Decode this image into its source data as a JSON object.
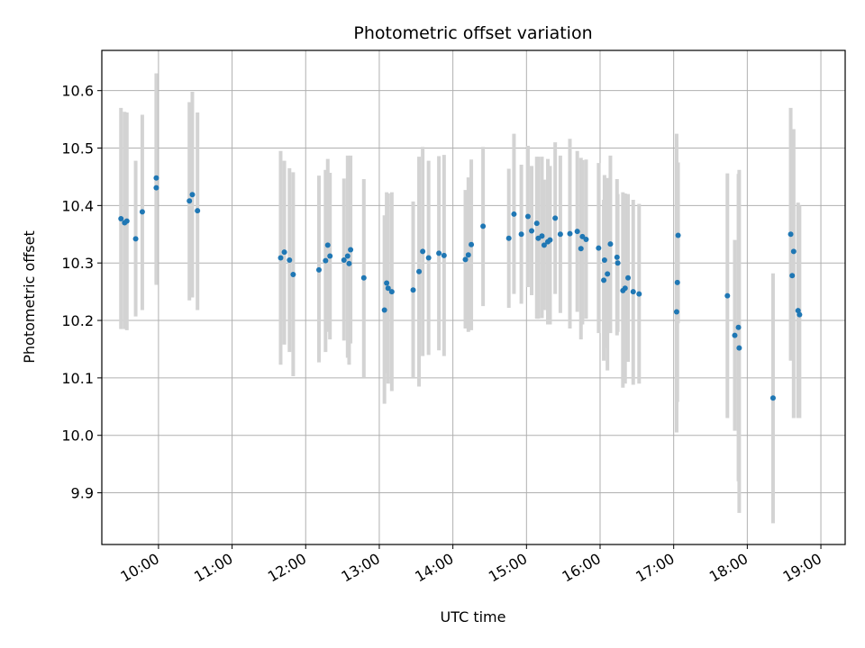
{
  "chart_data": {
    "type": "scatter",
    "title": "Photometric offset variation",
    "xlabel": "UTC time",
    "ylabel": "Photometric offset",
    "x_unit": "hours UTC",
    "xlim": [
      9.23,
      19.33
    ],
    "ylim": [
      9.81,
      10.67
    ],
    "grid": true,
    "point_color": "#1f77b4",
    "errorbar_color": "#d3d3d3",
    "x_ticks": [
      {
        "value": 10,
        "label": "10:00"
      },
      {
        "value": 11,
        "label": "11:00"
      },
      {
        "value": 12,
        "label": "12:00"
      },
      {
        "value": 13,
        "label": "13:00"
      },
      {
        "value": 14,
        "label": "14:00"
      },
      {
        "value": 15,
        "label": "15:00"
      },
      {
        "value": 16,
        "label": "16:00"
      },
      {
        "value": 17,
        "label": "17:00"
      },
      {
        "value": 18,
        "label": "18:00"
      },
      {
        "value": 19,
        "label": "19:00"
      }
    ],
    "y_ticks": [
      {
        "value": 9.9,
        "label": "9.9"
      },
      {
        "value": 10.0,
        "label": "10.0"
      },
      {
        "value": 10.1,
        "label": "10.1"
      },
      {
        "value": 10.2,
        "label": "10.2"
      },
      {
        "value": 10.3,
        "label": "10.3"
      },
      {
        "value": 10.4,
        "label": "10.4"
      },
      {
        "value": 10.5,
        "label": "10.5"
      },
      {
        "value": 10.6,
        "label": "10.6"
      }
    ],
    "points": [
      [
        9.49,
        10.377,
        10.185,
        10.57
      ],
      [
        9.54,
        10.37,
        10.185,
        10.563
      ],
      [
        9.57,
        10.373,
        10.183,
        10.562
      ],
      [
        9.69,
        10.342,
        10.207,
        10.478
      ],
      [
        9.78,
        10.389,
        10.218,
        10.558
      ],
      [
        9.97,
        10.448,
        10.266,
        10.63
      ],
      [
        9.97,
        10.431,
        10.262,
        10.598
      ],
      [
        10.42,
        10.408,
        10.235,
        10.58
      ],
      [
        10.46,
        10.419,
        10.24,
        10.598
      ],
      [
        10.53,
        10.391,
        10.218,
        10.562
      ],
      [
        11.66,
        10.309,
        10.123,
        10.495
      ],
      [
        11.71,
        10.319,
        10.158,
        10.478
      ],
      [
        11.78,
        10.305,
        10.145,
        10.465
      ],
      [
        11.83,
        10.28,
        10.103,
        10.458
      ],
      [
        12.18,
        10.288,
        10.127,
        10.452
      ],
      [
        12.27,
        10.304,
        10.145,
        10.462
      ],
      [
        12.3,
        10.331,
        10.18,
        10.481
      ],
      [
        12.33,
        10.312,
        10.167,
        10.457
      ],
      [
        12.52,
        10.305,
        10.165,
        10.447
      ],
      [
        12.57,
        10.312,
        10.135,
        10.487
      ],
      [
        12.59,
        10.299,
        10.123,
        10.475
      ],
      [
        12.61,
        10.323,
        10.16,
        10.487
      ],
      [
        12.79,
        10.274,
        10.1,
        10.446
      ],
      [
        13.07,
        10.218,
        10.055,
        10.383
      ],
      [
        13.1,
        10.265,
        10.108,
        10.423
      ],
      [
        13.12,
        10.256,
        10.09,
        10.421
      ],
      [
        13.17,
        10.25,
        10.077,
        10.423
      ],
      [
        13.46,
        10.253,
        10.1,
        10.407
      ],
      [
        13.54,
        10.285,
        10.085,
        10.485
      ],
      [
        13.59,
        10.32,
        10.138,
        10.502
      ],
      [
        13.67,
        10.309,
        10.14,
        10.478
      ],
      [
        13.81,
        10.317,
        10.148,
        10.486
      ],
      [
        13.88,
        10.313,
        10.138,
        10.488
      ],
      [
        14.17,
        10.306,
        10.186,
        10.427
      ],
      [
        14.21,
        10.314,
        10.18,
        10.449
      ],
      [
        14.25,
        10.332,
        10.183,
        10.48
      ],
      [
        14.41,
        10.364,
        10.225,
        10.502
      ],
      [
        14.76,
        10.343,
        10.222,
        10.464
      ],
      [
        14.83,
        10.385,
        10.246,
        10.525
      ],
      [
        14.93,
        10.35,
        10.229,
        10.471
      ],
      [
        15.02,
        10.381,
        10.258,
        10.504
      ],
      [
        15.07,
        10.356,
        10.244,
        10.469
      ],
      [
        15.14,
        10.369,
        10.203,
        10.485
      ],
      [
        15.16,
        10.343,
        10.203,
        10.485
      ],
      [
        15.21,
        10.347,
        10.204,
        10.485
      ],
      [
        15.24,
        10.331,
        10.218,
        10.445
      ],
      [
        15.29,
        10.337,
        10.193,
        10.481
      ],
      [
        15.32,
        10.34,
        10.193,
        10.469
      ],
      [
        15.39,
        10.378,
        10.246,
        10.51
      ],
      [
        15.46,
        10.35,
        10.213,
        10.487
      ],
      [
        15.59,
        10.351,
        10.186,
        10.516
      ],
      [
        15.69,
        10.355,
        10.215,
        10.495
      ],
      [
        15.74,
        10.325,
        10.167,
        10.483
      ],
      [
        15.76,
        10.346,
        10.193,
        10.479
      ],
      [
        15.81,
        10.341,
        10.203,
        10.48
      ],
      [
        15.98,
        10.326,
        10.178,
        10.474
      ],
      [
        16.05,
        10.27,
        10.13,
        10.41
      ],
      [
        16.06,
        10.305,
        10.152,
        10.453
      ],
      [
        16.1,
        10.281,
        10.113,
        10.448
      ],
      [
        16.14,
        10.333,
        10.178,
        10.487
      ],
      [
        16.23,
        10.31,
        10.174,
        10.446
      ],
      [
        16.24,
        10.3,
        10.18,
        10.42
      ],
      [
        16.31,
        10.252,
        10.083,
        10.423
      ],
      [
        16.34,
        10.256,
        10.09,
        10.421
      ],
      [
        16.38,
        10.274,
        10.128,
        10.42
      ],
      [
        16.45,
        10.25,
        10.088,
        10.41
      ],
      [
        16.53,
        10.246,
        10.09,
        10.403
      ],
      [
        17.04,
        10.215,
        10.005,
        10.525
      ],
      [
        17.05,
        10.266,
        10.058,
        10.473
      ],
      [
        17.06,
        10.348,
        10.195,
        10.475
      ],
      [
        17.73,
        10.243,
        10.03,
        10.456
      ],
      [
        17.83,
        10.174,
        10.008,
        10.34
      ],
      [
        17.88,
        10.188,
        9.92,
        10.455
      ],
      [
        17.89,
        10.152,
        9.865,
        10.462
      ],
      [
        18.35,
        10.065,
        9.847,
        10.282
      ],
      [
        18.59,
        10.35,
        10.13,
        10.57
      ],
      [
        18.61,
        10.278,
        10.168,
        10.388
      ],
      [
        18.63,
        10.32,
        10.03,
        10.533
      ],
      [
        18.69,
        10.217,
        10.03,
        10.405
      ],
      [
        18.71,
        10.21,
        10.03,
        10.4
      ]
    ]
  }
}
